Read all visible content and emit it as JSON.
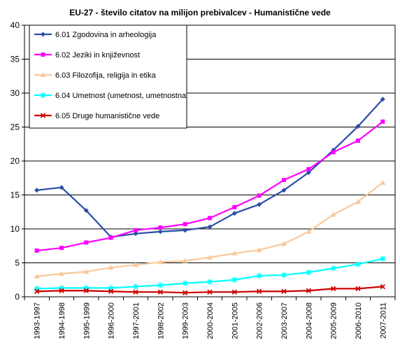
{
  "chart_data": {
    "type": "line",
    "title": "EU-27 - število citatov na milijon prebivalcev - Humanistične vede",
    "xlabel": "",
    "ylabel": "",
    "ylim": [
      0,
      40
    ],
    "yticks": [
      0,
      5,
      10,
      15,
      20,
      25,
      30,
      35,
      40
    ],
    "grid": "horizontal",
    "legend_position": "top-left",
    "categories": [
      "1993-1997",
      "1994-1998",
      "1995-1999",
      "1996-2000",
      "1997-2001",
      "1998-2002",
      "1999-2003",
      "2000-2004",
      "2001-2005",
      "2002-2006",
      "2003-2007",
      "2004-2008",
      "2005-2009",
      "2006-2010",
      "2007-2011"
    ],
    "series": [
      {
        "name": "6.01 Zgodovina in arheologija",
        "color": "#2b4da6",
        "marker": "diamond",
        "values": [
          15.7,
          16.1,
          12.7,
          8.8,
          9.3,
          9.6,
          9.8,
          10.3,
          12.3,
          13.6,
          15.7,
          18.3,
          21.6,
          25.1,
          29.1
        ]
      },
      {
        "name": "6.02 Jeziki in književnost",
        "color": "#ff00ff",
        "marker": "square",
        "values": [
          6.8,
          7.2,
          8.0,
          8.7,
          9.8,
          10.2,
          10.7,
          11.6,
          13.2,
          14.9,
          17.2,
          18.8,
          21.3,
          23.0,
          25.8
        ]
      },
      {
        "name": "6.03 Filozofija, religija in etika",
        "color": "#f9c89b",
        "marker": "triangle",
        "values": [
          3.0,
          3.4,
          3.7,
          4.3,
          4.7,
          5.1,
          5.3,
          5.8,
          6.4,
          6.9,
          7.8,
          9.6,
          12.1,
          14.0,
          16.8
        ]
      },
      {
        "name": "6.04 Umetnost (umetnost, umetnostna",
        "color": "#00ffff",
        "marker": "cross",
        "values": [
          1.2,
          1.3,
          1.3,
          1.3,
          1.5,
          1.7,
          2.0,
          2.2,
          2.5,
          3.1,
          3.2,
          3.6,
          4.2,
          4.8,
          5.6
        ]
      },
      {
        "name": "6.05 Druge humanistične vede",
        "color": "#cc0000",
        "marker": "x",
        "values": [
          0.8,
          0.9,
          0.9,
          0.8,
          0.7,
          0.7,
          0.6,
          0.7,
          0.7,
          0.8,
          0.8,
          0.9,
          1.2,
          1.2,
          1.5
        ]
      }
    ]
  }
}
